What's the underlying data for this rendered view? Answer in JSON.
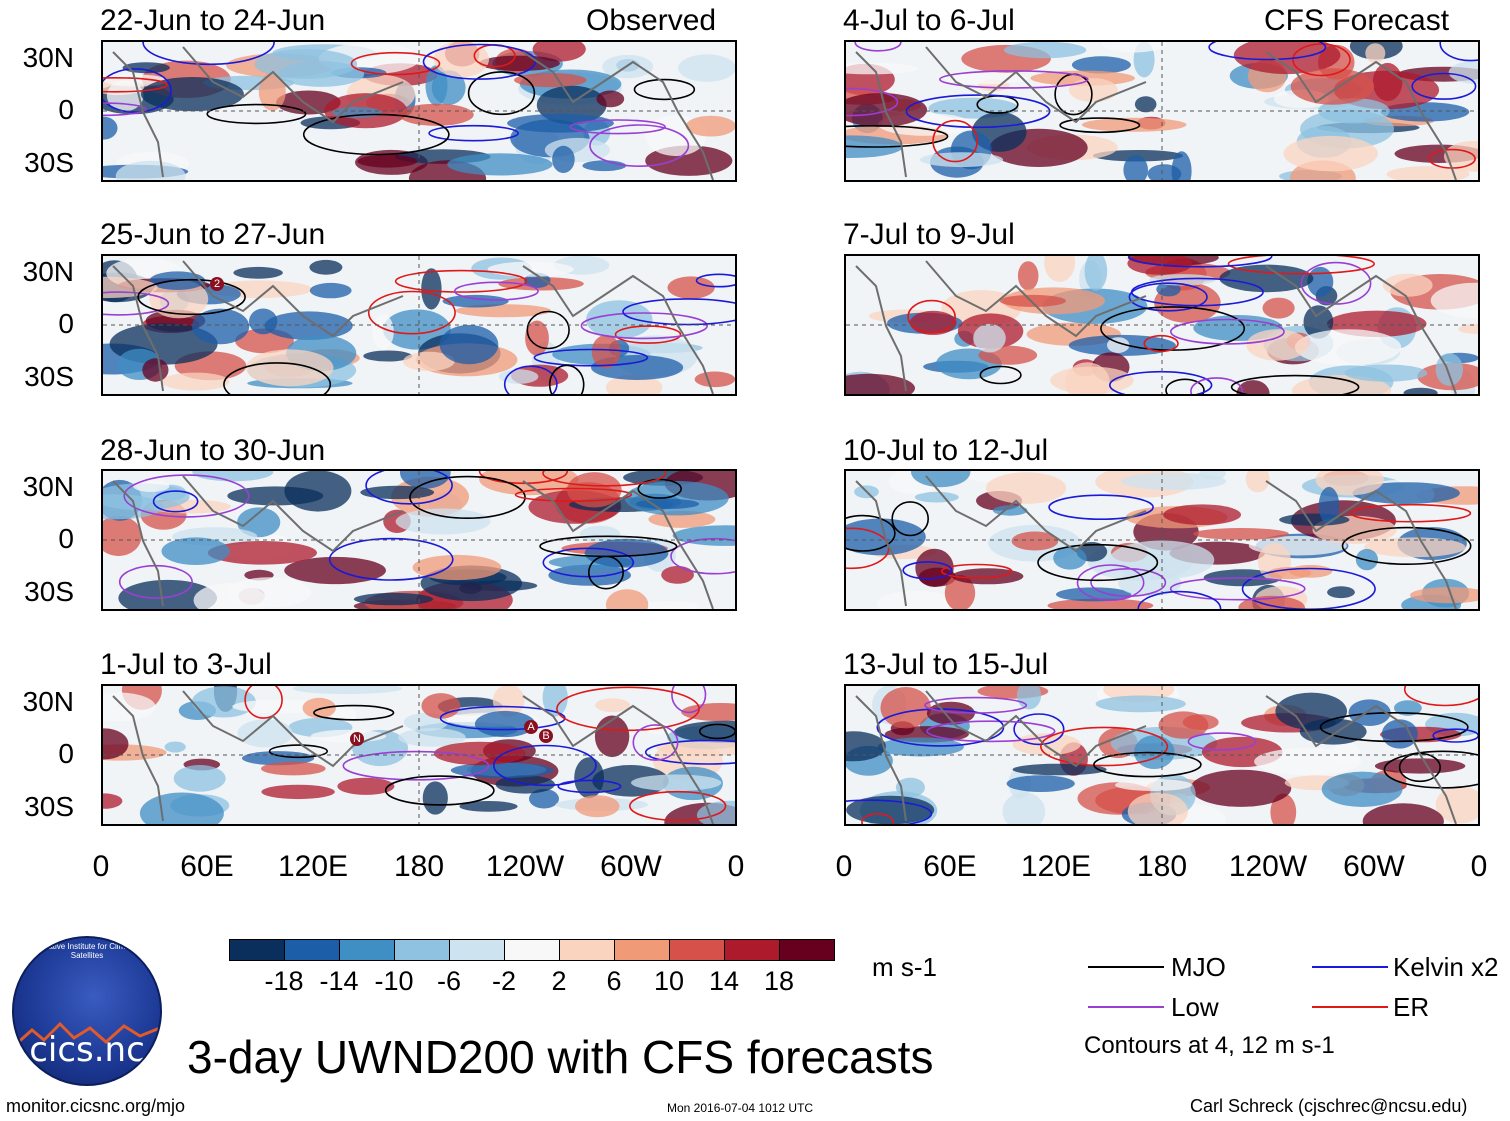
{
  "panels": {
    "left": [
      {
        "title": "22-Jun to 24-Jun",
        "tag": "Observed"
      },
      {
        "title": "25-Jun to 27-Jun",
        "tag": ""
      },
      {
        "title": "28-Jun to 30-Jun",
        "tag": ""
      },
      {
        "title": "1-Jul to 3-Jul",
        "tag": ""
      }
    ],
    "right": [
      {
        "title": "4-Jul to 6-Jul",
        "tag": "CFS Forecast"
      },
      {
        "title": "7-Jul to 9-Jul",
        "tag": ""
      },
      {
        "title": "10-Jul to 12-Jul",
        "tag": ""
      },
      {
        "title": "13-Jul to 15-Jul",
        "tag": ""
      }
    ]
  },
  "y_labels": [
    "30N",
    "0",
    "30S"
  ],
  "x_labels": [
    "0",
    "60E",
    "120E",
    "180",
    "120W",
    "60W",
    "0"
  ],
  "colorbar": {
    "labels": [
      "-18",
      "-14",
      "-10",
      "-6",
      "-2",
      "2",
      "6",
      "10",
      "14",
      "18"
    ],
    "colors": [
      "#0a2f5c",
      "#1c5ea8",
      "#3f8ec4",
      "#8ec2e0",
      "#cde3ef",
      "#f8f8f8",
      "#fbd4c0",
      "#f19a78",
      "#d5514a",
      "#ad1a2c",
      "#67001f"
    ],
    "units": "m s-1"
  },
  "legend": {
    "items": [
      {
        "label": "MJO",
        "color": "#000000"
      },
      {
        "label": "Kelvin x2",
        "color": "#1a1ad8"
      },
      {
        "label": "Low",
        "color": "#9a3fd4"
      },
      {
        "label": "ER",
        "color": "#e01818"
      }
    ],
    "note": "Contours at 4, 12 m s-1"
  },
  "storm_labels": [
    "2",
    "N",
    "A",
    "B"
  ],
  "title": "3-day UWND200 with CFS forecasts",
  "logo_text": "cics.nc",
  "logo_ring_text": "Cooperative Institute for Climate and Satellites",
  "footer": {
    "left": "monitor.cicsnc.org/mjo",
    "center": "Mon 2016-07-04 1012 UTC",
    "right": "Carl Schreck (cjschrec@ncsu.edu)"
  }
}
